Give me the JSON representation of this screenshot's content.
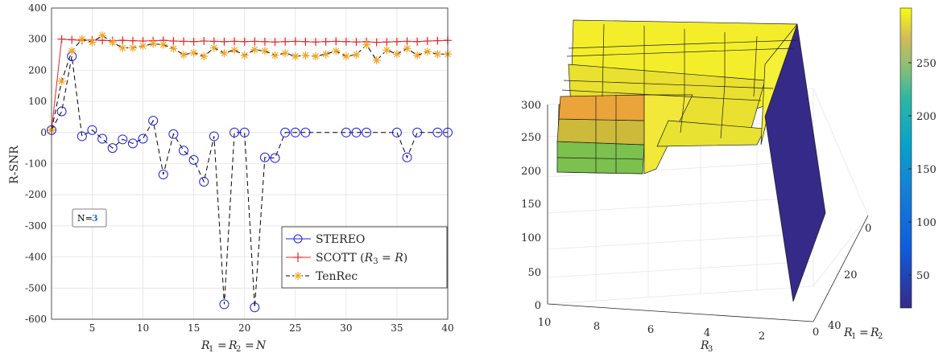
{
  "chart_data": [
    {
      "type": "line",
      "xlabel": "R1 = R2 = N",
      "ylabel": "R-SNR",
      "xlim": [
        1,
        40
      ],
      "ylim": [
        -600,
        400
      ],
      "xticks": [
        5,
        10,
        15,
        20,
        25,
        30,
        35,
        40
      ],
      "yticks": [
        -600,
        -500,
        -400,
        -300,
        -200,
        -100,
        0,
        100,
        200,
        300,
        400
      ],
      "grid": true,
      "legend_position": "bottom-right",
      "annotation": {
        "x": 3,
        "y": 247,
        "label": "N=",
        "value": "3"
      },
      "series": [
        {
          "name": "STEREO",
          "color": "#1f1fe6",
          "marker": "circle",
          "line": "dashed",
          "x": [
            1,
            2,
            3,
            4,
            5,
            6,
            7,
            8,
            9,
            10,
            11,
            12,
            13,
            14,
            15,
            16,
            17,
            18,
            19,
            20,
            21,
            22,
            23,
            24,
            25,
            26,
            30,
            31,
            32,
            35,
            36,
            37,
            39,
            40
          ],
          "values": [
            8,
            68,
            245,
            -12,
            8,
            -20,
            -50,
            -22,
            -35,
            -20,
            38,
            -135,
            -5,
            -58,
            -88,
            -158,
            -12,
            -552,
            0,
            0,
            -562,
            -80,
            -82,
            0,
            0,
            0,
            0,
            0,
            0,
            0,
            -80,
            0,
            0,
            0
          ]
        },
        {
          "name": "SCOTT (R3 = R)",
          "color": "#e6242a",
          "marker": "plus",
          "line": "solid",
          "x": [
            1,
            2,
            3,
            4,
            5,
            6,
            7,
            8,
            9,
            10,
            11,
            12,
            13,
            14,
            15,
            16,
            17,
            18,
            19,
            20,
            21,
            22,
            23,
            24,
            25,
            26,
            27,
            28,
            29,
            30,
            31,
            32,
            33,
            34,
            35,
            36,
            37,
            38,
            39,
            40
          ],
          "values": [
            8,
            300,
            298,
            296,
            297,
            296,
            295,
            296,
            295,
            294,
            295,
            296,
            294,
            293,
            292,
            294,
            293,
            292,
            293,
            292,
            293,
            292,
            291,
            292,
            293,
            292,
            291,
            292,
            293,
            292,
            291,
            292,
            290,
            291,
            292,
            293,
            292,
            294,
            295,
            296
          ]
        },
        {
          "name": "TenRec",
          "color": "#f0a520",
          "marker": "asterisk",
          "line": "dashed",
          "x": [
            1,
            2,
            3,
            4,
            5,
            6,
            7,
            8,
            9,
            10,
            11,
            12,
            13,
            14,
            15,
            16,
            17,
            18,
            19,
            20,
            21,
            22,
            23,
            24,
            25,
            26,
            27,
            28,
            29,
            30,
            31,
            32,
            33,
            34,
            35,
            36,
            37,
            38,
            39,
            40
          ],
          "values": [
            8,
            165,
            262,
            300,
            290,
            312,
            290,
            272,
            272,
            278,
            285,
            282,
            270,
            250,
            256,
            245,
            272,
            255,
            265,
            248,
            266,
            262,
            248,
            255,
            245,
            248,
            245,
            252,
            262,
            245,
            250,
            282,
            232,
            265,
            252,
            270,
            248,
            260,
            252,
            252
          ]
        }
      ]
    },
    {
      "type": "surface",
      "xlabel": "R3",
      "ylabel": "R1 = R2",
      "zlim": [
        0,
        300
      ],
      "colorbar_range": [
        15,
        300
      ],
      "r3_ticks": [
        10,
        8,
        6,
        4,
        2,
        0
      ],
      "r12_ticks": [
        0,
        20,
        40
      ],
      "z_ticks": [
        0,
        50,
        100,
        150,
        200,
        250,
        300
      ],
      "colorbar_ticks": [
        50,
        100,
        150,
        200,
        250
      ],
      "colormap": "parula"
    }
  ]
}
